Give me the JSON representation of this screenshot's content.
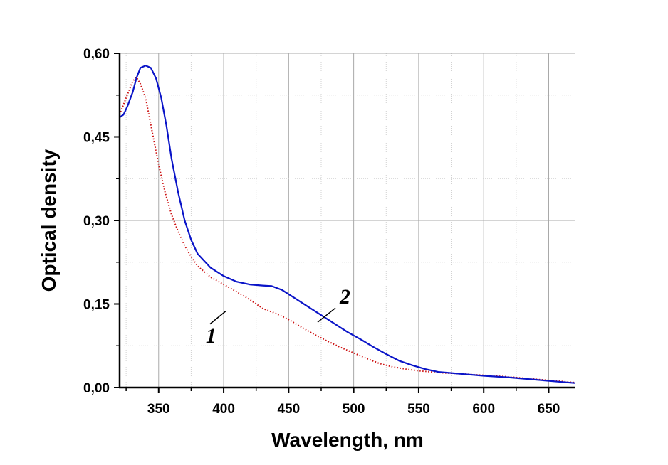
{
  "chart_data": {
    "type": "line",
    "title": "",
    "xlabel": "Wavelength, nm",
    "ylabel": "Optical density",
    "xlim": [
      320,
      670
    ],
    "ylim": [
      0,
      0.6
    ],
    "x_ticks": [
      350,
      400,
      450,
      500,
      550,
      600,
      650
    ],
    "x_tick_labels": [
      "350",
      "400",
      "450",
      "500",
      "550",
      "600",
      "650"
    ],
    "y_ticks": [
      0,
      0.15,
      0.3,
      0.45,
      0.6
    ],
    "y_tick_labels": [
      "0,00",
      "0,15",
      "0,30",
      "0,45",
      "0,60"
    ],
    "grid": true,
    "legend": "none",
    "series": [
      {
        "label": "1",
        "color": "#cc1111",
        "style": "dotted",
        "points": [
          [
            320,
            0.49
          ],
          [
            325,
            0.52
          ],
          [
            330,
            0.55
          ],
          [
            333,
            0.557
          ],
          [
            336,
            0.545
          ],
          [
            340,
            0.52
          ],
          [
            345,
            0.46
          ],
          [
            350,
            0.4
          ],
          [
            355,
            0.35
          ],
          [
            360,
            0.31
          ],
          [
            365,
            0.28
          ],
          [
            370,
            0.255
          ],
          [
            375,
            0.235
          ],
          [
            380,
            0.218
          ],
          [
            390,
            0.198
          ],
          [
            400,
            0.185
          ],
          [
            410,
            0.172
          ],
          [
            420,
            0.158
          ],
          [
            430,
            0.142
          ],
          [
            440,
            0.133
          ],
          [
            450,
            0.122
          ],
          [
            460,
            0.108
          ],
          [
            470,
            0.095
          ],
          [
            480,
            0.083
          ],
          [
            490,
            0.072
          ],
          [
            500,
            0.062
          ],
          [
            510,
            0.052
          ],
          [
            520,
            0.043
          ],
          [
            530,
            0.037
          ],
          [
            540,
            0.033
          ],
          [
            550,
            0.03
          ],
          [
            560,
            0.028
          ],
          [
            570,
            0.026
          ],
          [
            580,
            0.025
          ],
          [
            600,
            0.022
          ],
          [
            620,
            0.019
          ],
          [
            640,
            0.015
          ],
          [
            660,
            0.011
          ],
          [
            670,
            0.009
          ]
        ]
      },
      {
        "label": "2",
        "color": "#0a14c8",
        "style": "solid",
        "points": [
          [
            320,
            0.485
          ],
          [
            323,
            0.49
          ],
          [
            326,
            0.505
          ],
          [
            330,
            0.53
          ],
          [
            333,
            0.556
          ],
          [
            336,
            0.574
          ],
          [
            340,
            0.578
          ],
          [
            344,
            0.574
          ],
          [
            348,
            0.555
          ],
          [
            352,
            0.52
          ],
          [
            356,
            0.47
          ],
          [
            360,
            0.41
          ],
          [
            365,
            0.35
          ],
          [
            370,
            0.3
          ],
          [
            375,
            0.265
          ],
          [
            380,
            0.24
          ],
          [
            390,
            0.215
          ],
          [
            400,
            0.2
          ],
          [
            410,
            0.19
          ],
          [
            420,
            0.185
          ],
          [
            430,
            0.183
          ],
          [
            437,
            0.182
          ],
          [
            445,
            0.175
          ],
          [
            455,
            0.16
          ],
          [
            465,
            0.145
          ],
          [
            475,
            0.13
          ],
          [
            485,
            0.115
          ],
          [
            495,
            0.1
          ],
          [
            505,
            0.087
          ],
          [
            515,
            0.073
          ],
          [
            525,
            0.06
          ],
          [
            535,
            0.048
          ],
          [
            545,
            0.04
          ],
          [
            555,
            0.033
          ],
          [
            565,
            0.028
          ],
          [
            575,
            0.026
          ],
          [
            585,
            0.024
          ],
          [
            600,
            0.021
          ],
          [
            620,
            0.018
          ],
          [
            640,
            0.014
          ],
          [
            660,
            0.01
          ],
          [
            670,
            0.008
          ]
        ]
      }
    ],
    "annotations": [
      {
        "text": "1",
        "series": "1",
        "x": 430,
        "y": 0.142
      },
      {
        "text": "2",
        "series": "2",
        "x": 475,
        "y": 0.13
      }
    ]
  }
}
